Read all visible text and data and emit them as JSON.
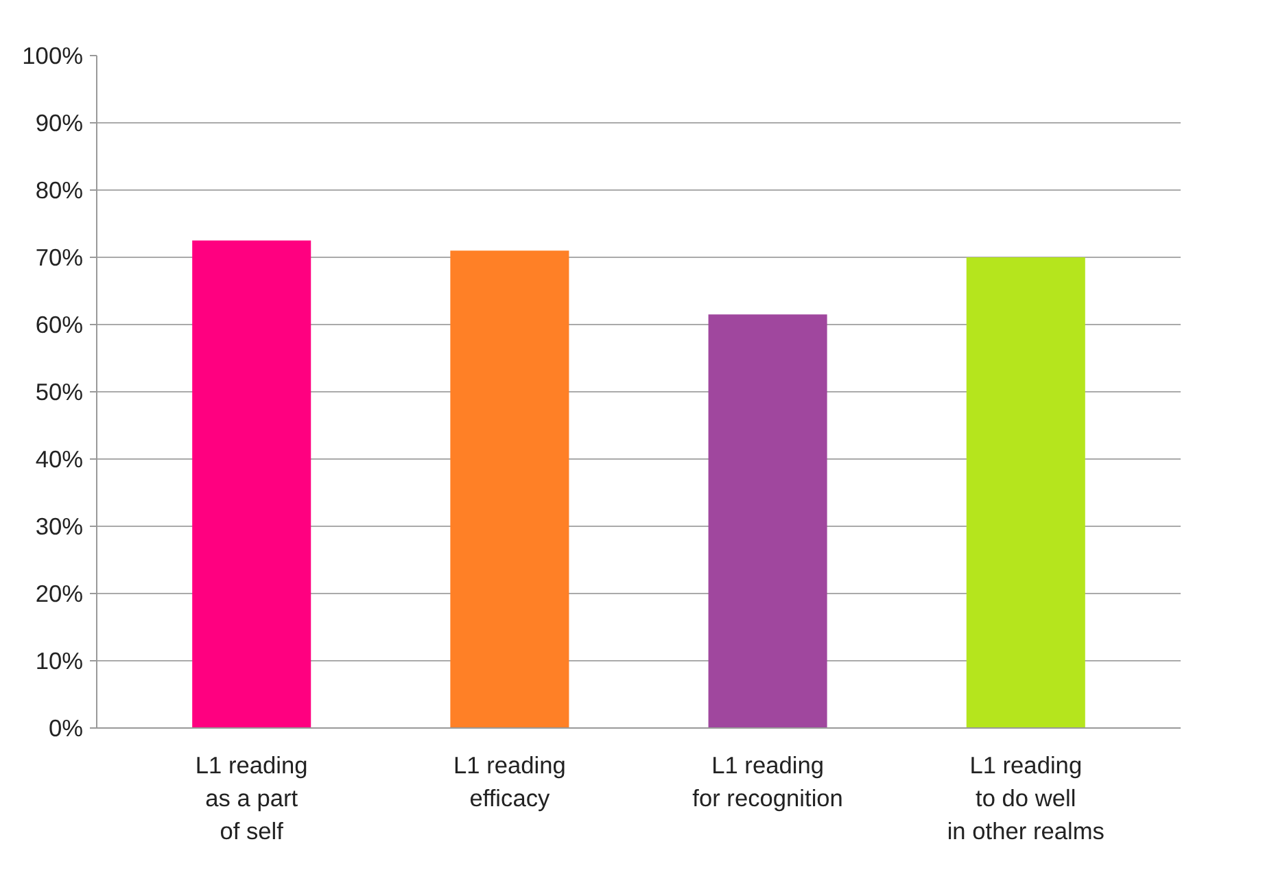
{
  "chart_data": {
    "type": "bar",
    "categories": [
      "L1 reading\nas a part\nof self",
      "L1 reading\nefficacy",
      "L1 reading\nfor recognition",
      "L1 reading\nto do well\nin other realms"
    ],
    "values": [
      72.5,
      71,
      61.5,
      70
    ],
    "colors": [
      "#ff0080",
      "#ff8026",
      "#a0479e",
      "#b5e51d"
    ],
    "ylim": [
      0,
      100
    ],
    "yticks": [
      {
        "value": 0,
        "label": "0%"
      },
      {
        "value": 10,
        "label": "10%"
      },
      {
        "value": 20,
        "label": "20%"
      },
      {
        "value": 30,
        "label": "30%"
      },
      {
        "value": 40,
        "label": "40%"
      },
      {
        "value": 50,
        "label": "50%"
      },
      {
        "value": 60,
        "label": "60%"
      },
      {
        "value": 70,
        "label": "70%"
      },
      {
        "value": 80,
        "label": "80%"
      },
      {
        "value": 90,
        "label": "90%"
      },
      {
        "value": 100,
        "label": "100%"
      }
    ],
    "grid": "y"
  }
}
